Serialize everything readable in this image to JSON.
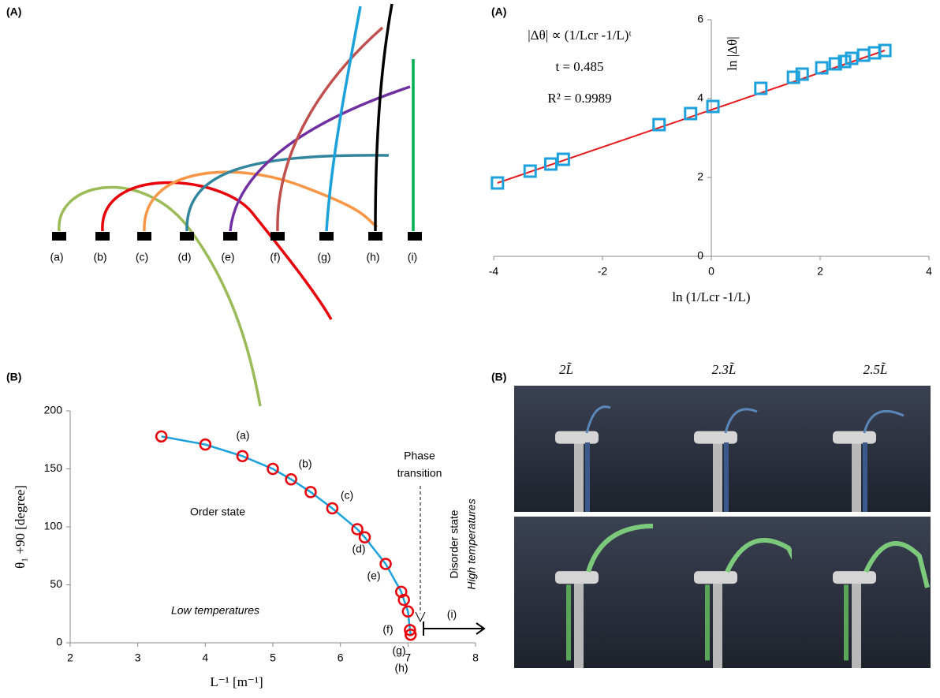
{
  "chart_data": [
    {
      "type": "scatter",
      "panel_label": "(A)",
      "x_label": "ln (1/Lcr -1/L)",
      "y_label": "ln |Δθ|",
      "annotations": [
        "|Δθ| ∝ (1/Lcr -1/L)ᵗ",
        "t = 0.485",
        "R² = 0.9989"
      ],
      "xlim": [
        -4,
        4
      ],
      "xticks": [
        -4,
        -2,
        0,
        2,
        4
      ],
      "ylim": [
        0,
        6
      ],
      "yticks": [
        0,
        2,
        4,
        6
      ],
      "series": [
        {
          "color": "#1ba1dc",
          "marker": "square",
          "x": [
            -3.93,
            -3.33,
            -2.95,
            -2.72,
            -0.96,
            -0.38,
            0.03,
            0.91,
            1.51,
            1.67,
            2.03,
            2.28,
            2.45,
            2.58,
            2.8,
            3.0,
            3.19
          ],
          "values": [
            1.86,
            2.16,
            2.34,
            2.46,
            3.34,
            3.62,
            3.8,
            4.26,
            4.54,
            4.62,
            4.78,
            4.88,
            4.94,
            5.02,
            5.1,
            5.16,
            5.22
          ]
        },
        {
          "color": "#e41a1c",
          "marker": "none",
          "x": [
            -3.93,
            3.19
          ],
          "values": [
            1.86,
            5.22
          ]
        }
      ]
    },
    {
      "type": "line",
      "panel_label": "(B)",
      "x_label": "L⁻¹ [m⁻¹]",
      "y_label": "θ₁ +90 [degree]",
      "annotations": [
        "(a)",
        "(b)",
        "(c)",
        "(d)",
        "(e)",
        "(f)",
        "(g)",
        "(h)",
        "(i)",
        "Phase",
        "transition",
        "Order state",
        "Low temperatures",
        "Disorder state",
        "High temperatures"
      ],
      "xlim": [
        2,
        8
      ],
      "xticks": [
        2,
        3,
        4,
        5,
        6,
        7,
        8
      ],
      "ylim": [
        0,
        200
      ],
      "yticks": [
        0,
        50,
        100,
        150,
        200
      ],
      "series": [
        {
          "color": "#1ba1dc",
          "marker_color": "#e8000b",
          "x": [
            3.35,
            4.0,
            4.55,
            5.0,
            5.27,
            5.56,
            5.88,
            6.25,
            6.36,
            6.67,
            6.9,
            6.94,
            7.0,
            7.03,
            7.04
          ],
          "values": [
            178,
            171,
            161,
            150,
            141,
            130,
            116,
            98,
            91,
            68,
            44,
            37,
            27,
            11,
            7
          ]
        }
      ]
    }
  ],
  "shapes_panel": {
    "label": "(A)",
    "stems": [
      "(a)",
      "(b)",
      "(c)",
      "(d)",
      "(e)",
      "(f)",
      "(g)",
      "(h)",
      "(i)"
    ]
  },
  "photo_panel": {
    "label": "(B)",
    "columns": [
      "2L̃",
      "2.3L̃",
      "2.5L̃"
    ]
  }
}
